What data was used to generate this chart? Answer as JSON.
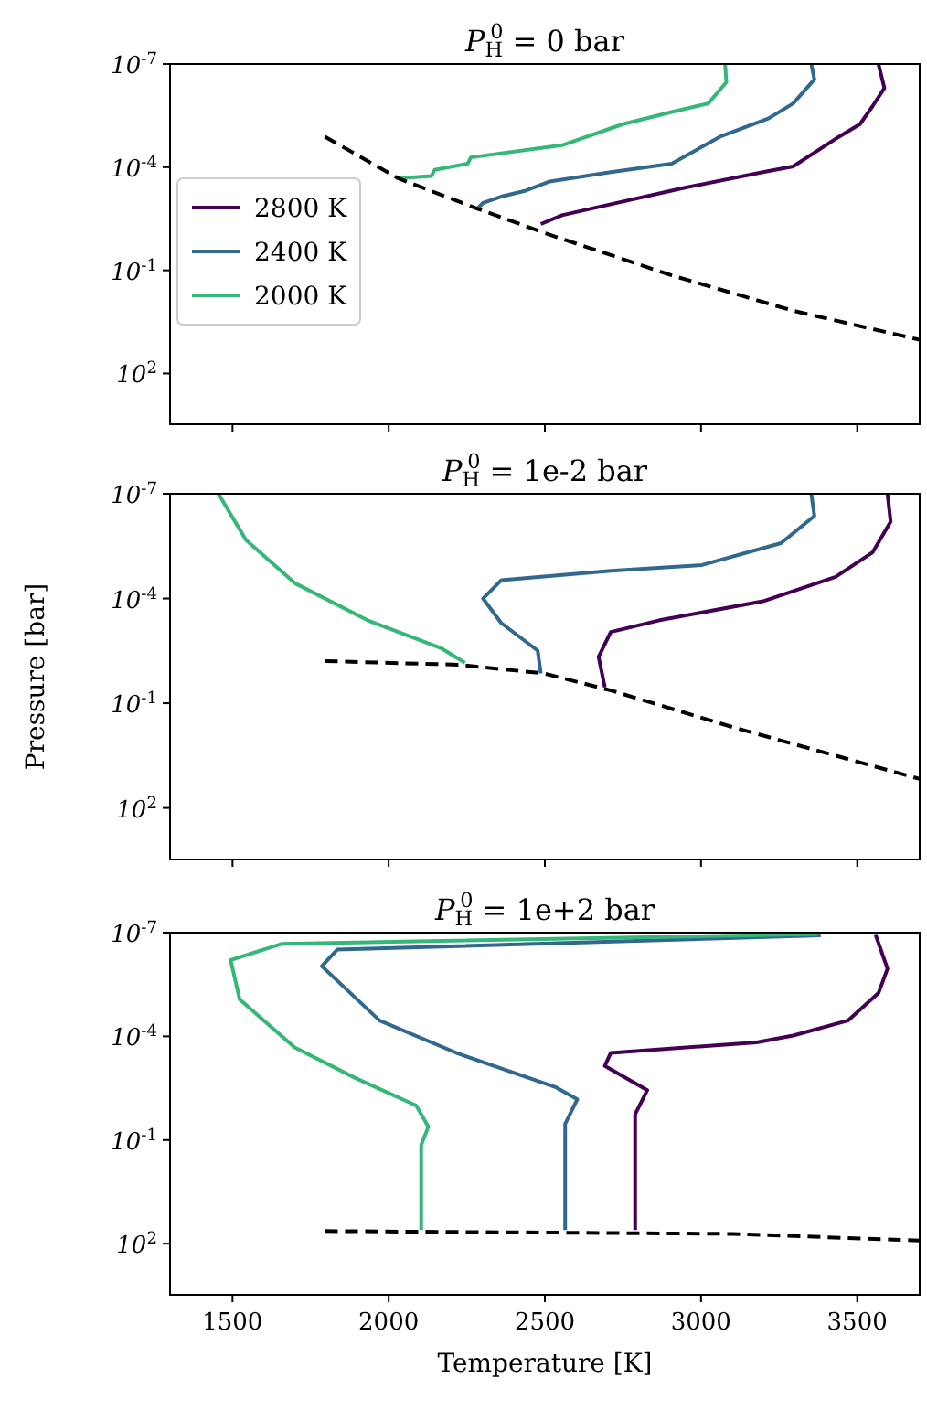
{
  "chart_data": [
    {
      "type": "line",
      "title": "P$_{H}$$^{0}$ = 0 bar",
      "log": "y",
      "xlim": [
        1300,
        3700
      ],
      "ylim": [
        3000,
        1e-07
      ],
      "xticks": [
        1500,
        2000,
        2500,
        3000,
        3500
      ],
      "yticks": [
        {
          "value": 1e-07,
          "label": "10$^{-7}$"
        },
        {
          "value": 0.0001,
          "label": "10$^{-4}$"
        },
        {
          "value": 0.1,
          "label": "10$^{-1}$"
        },
        {
          "value": 100,
          "label": "10$^{2}$"
        }
      ],
      "tick_labels": "y",
      "legend": "left",
      "grid": false,
      "series": [
        {
          "name": "2800 K",
          "color": "#440154",
          "x": [
            3568,
            3587,
            3549,
            3509,
            3431,
            3295,
            3198,
            2945,
            2711,
            2555,
            2487
          ],
          "values": [
            1e-07,
            5e-07,
            1.7e-06,
            5.6e-06,
            1.5e-05,
            9.5e-05,
            0.00014,
            0.0004,
            0.0012,
            0.0025,
            0.0045
          ]
        },
        {
          "name": "2400 K",
          "color": "#31688e",
          "x": [
            3353,
            3363,
            3295,
            3217,
            3061,
            2906,
            2711,
            2516,
            2439,
            2360,
            2302,
            2287
          ],
          "values": [
            1e-07,
            2.8e-07,
            1.4e-06,
            3.8e-06,
            1.3e-05,
            7.9e-05,
            0.00014,
            0.00026,
            0.00048,
            0.00072,
            0.0011,
            0.0015
          ]
        },
        {
          "name": "2000 K",
          "color": "#35b779",
          "x": [
            3077,
            3081,
            3023,
            2906,
            2750,
            2555,
            2263,
            2253,
            2147,
            2137,
            2030
          ],
          "values": [
            1e-07,
            3.4e-07,
            1.4e-06,
            2.5e-06,
            5.6e-06,
            2.3e-05,
            5.2e-05,
            7.9e-05,
            0.00012,
            0.00018,
            0.00021
          ]
        },
        {
          "color": "#000000",
          "line_style": "dashed",
          "x": [
            1796,
            2030,
            2283,
            2497,
            2906,
            3295,
            3700
          ],
          "values": [
            1.3e-05,
            0.00021,
            0.0016,
            0.0081,
            0.14,
            1.5,
            10.5
          ]
        }
      ]
    },
    {
      "type": "line",
      "title": "P$_{H}$$^{0}$ = 1e-2 bar",
      "ylabel": "Pressure [bar]",
      "log": "y",
      "xlim": [
        1300,
        3700
      ],
      "ylim": [
        3000,
        1e-07
      ],
      "xticks": [
        1500,
        2000,
        2500,
        3000,
        3500
      ],
      "yticks": [
        {
          "value": 1e-07,
          "label": "10$^{-7}$"
        },
        {
          "value": 0.0001,
          "label": "10$^{-4}$"
        },
        {
          "value": 0.1,
          "label": "10$^{-1}$"
        },
        {
          "value": 100,
          "label": "10$^{2}$"
        }
      ],
      "tick_labels": "y",
      "grid": false,
      "series": [
        {
          "color": "#440154",
          "x": [
            3597,
            3607,
            3549,
            3431,
            3198,
            2867,
            2711,
            2672,
            2692
          ],
          "values": [
            1e-07,
            6.3e-07,
            4.8e-06,
            2.4e-05,
            0.00012,
            0.00042,
            0.00091,
            0.0047,
            0.035
          ]
        },
        {
          "color": "#31688e",
          "x": [
            3353,
            3363,
            3256,
            3003,
            2711,
            2360,
            2302,
            2360,
            2477,
            2487
          ],
          "values": [
            1e-07,
            4.3e-07,
            2.6e-06,
            1.1e-05,
            1.6e-05,
            3e-05,
            0.0001,
            0.0005,
            0.0031,
            0.014
          ]
        },
        {
          "color": "#35b779",
          "x": [
            1455,
            1543,
            1699,
            1932,
            2166,
            2244
          ],
          "values": [
            1e-07,
            2.1e-06,
            3.6e-05,
            0.00042,
            0.0026,
            0.0069
          ]
        },
        {
          "color": "#000000",
          "line_style": "dashed",
          "x": [
            1796,
            2224,
            2497,
            2711,
            3100,
            3700
          ],
          "values": [
            0.0062,
            0.0079,
            0.014,
            0.043,
            0.48,
            14.8
          ]
        }
      ]
    },
    {
      "type": "line",
      "title": "P$_{H}$$^{0}$ = 1e+2 bar",
      "xlabel": "Temperature [K]",
      "log": "y",
      "xlim": [
        1300,
        3700
      ],
      "ylim": [
        3000,
        1e-07
      ],
      "xticks": [
        1500,
        2000,
        2500,
        3000,
        3500
      ],
      "yticks": [
        {
          "value": 1e-07,
          "label": "10$^{-7}$"
        },
        {
          "value": 0.0001,
          "label": "10$^{-4}$"
        },
        {
          "value": 0.1,
          "label": "10$^{-1}$"
        },
        {
          "value": 100,
          "label": "10$^{2}$"
        }
      ],
      "grid": false,
      "series": [
        {
          "color": "#440154",
          "x": [
            3558,
            3597,
            3568,
            3470,
            3295,
            3178,
            2711,
            2692,
            2828,
            2789,
            2789
          ],
          "values": [
            1.1e-07,
            1.1e-06,
            5.6e-06,
            3.5e-05,
            9.5e-05,
            0.00015,
            0.0003,
            0.00072,
            0.0036,
            0.018,
            40
          ]
        },
        {
          "color": "#31688e",
          "x": [
            3383,
            1835,
            1786,
            1971,
            2224,
            2536,
            2604,
            2565,
            2565
          ],
          "values": [
            1.2e-07,
            3.1e-07,
            9.3e-07,
            3.5e-05,
            0.00032,
            0.003,
            0.0066,
            0.034,
            40
          ]
        },
        {
          "color": "#35b779",
          "x": [
            3373,
            1659,
            1494,
            1523,
            1699,
            1893,
            2088,
            2127,
            2104,
            2104
          ],
          "values": [
            1.1e-07,
            2.1e-07,
            6.2e-07,
            8.5e-06,
            0.00021,
            0.0016,
            0.01,
            0.041,
            0.14,
            40
          ]
        },
        {
          "color": "#000000",
          "line_style": "dashed",
          "x": [
            1796,
            3100,
            3700
          ],
          "values": [
            43,
            52,
            81
          ]
        }
      ]
    }
  ]
}
